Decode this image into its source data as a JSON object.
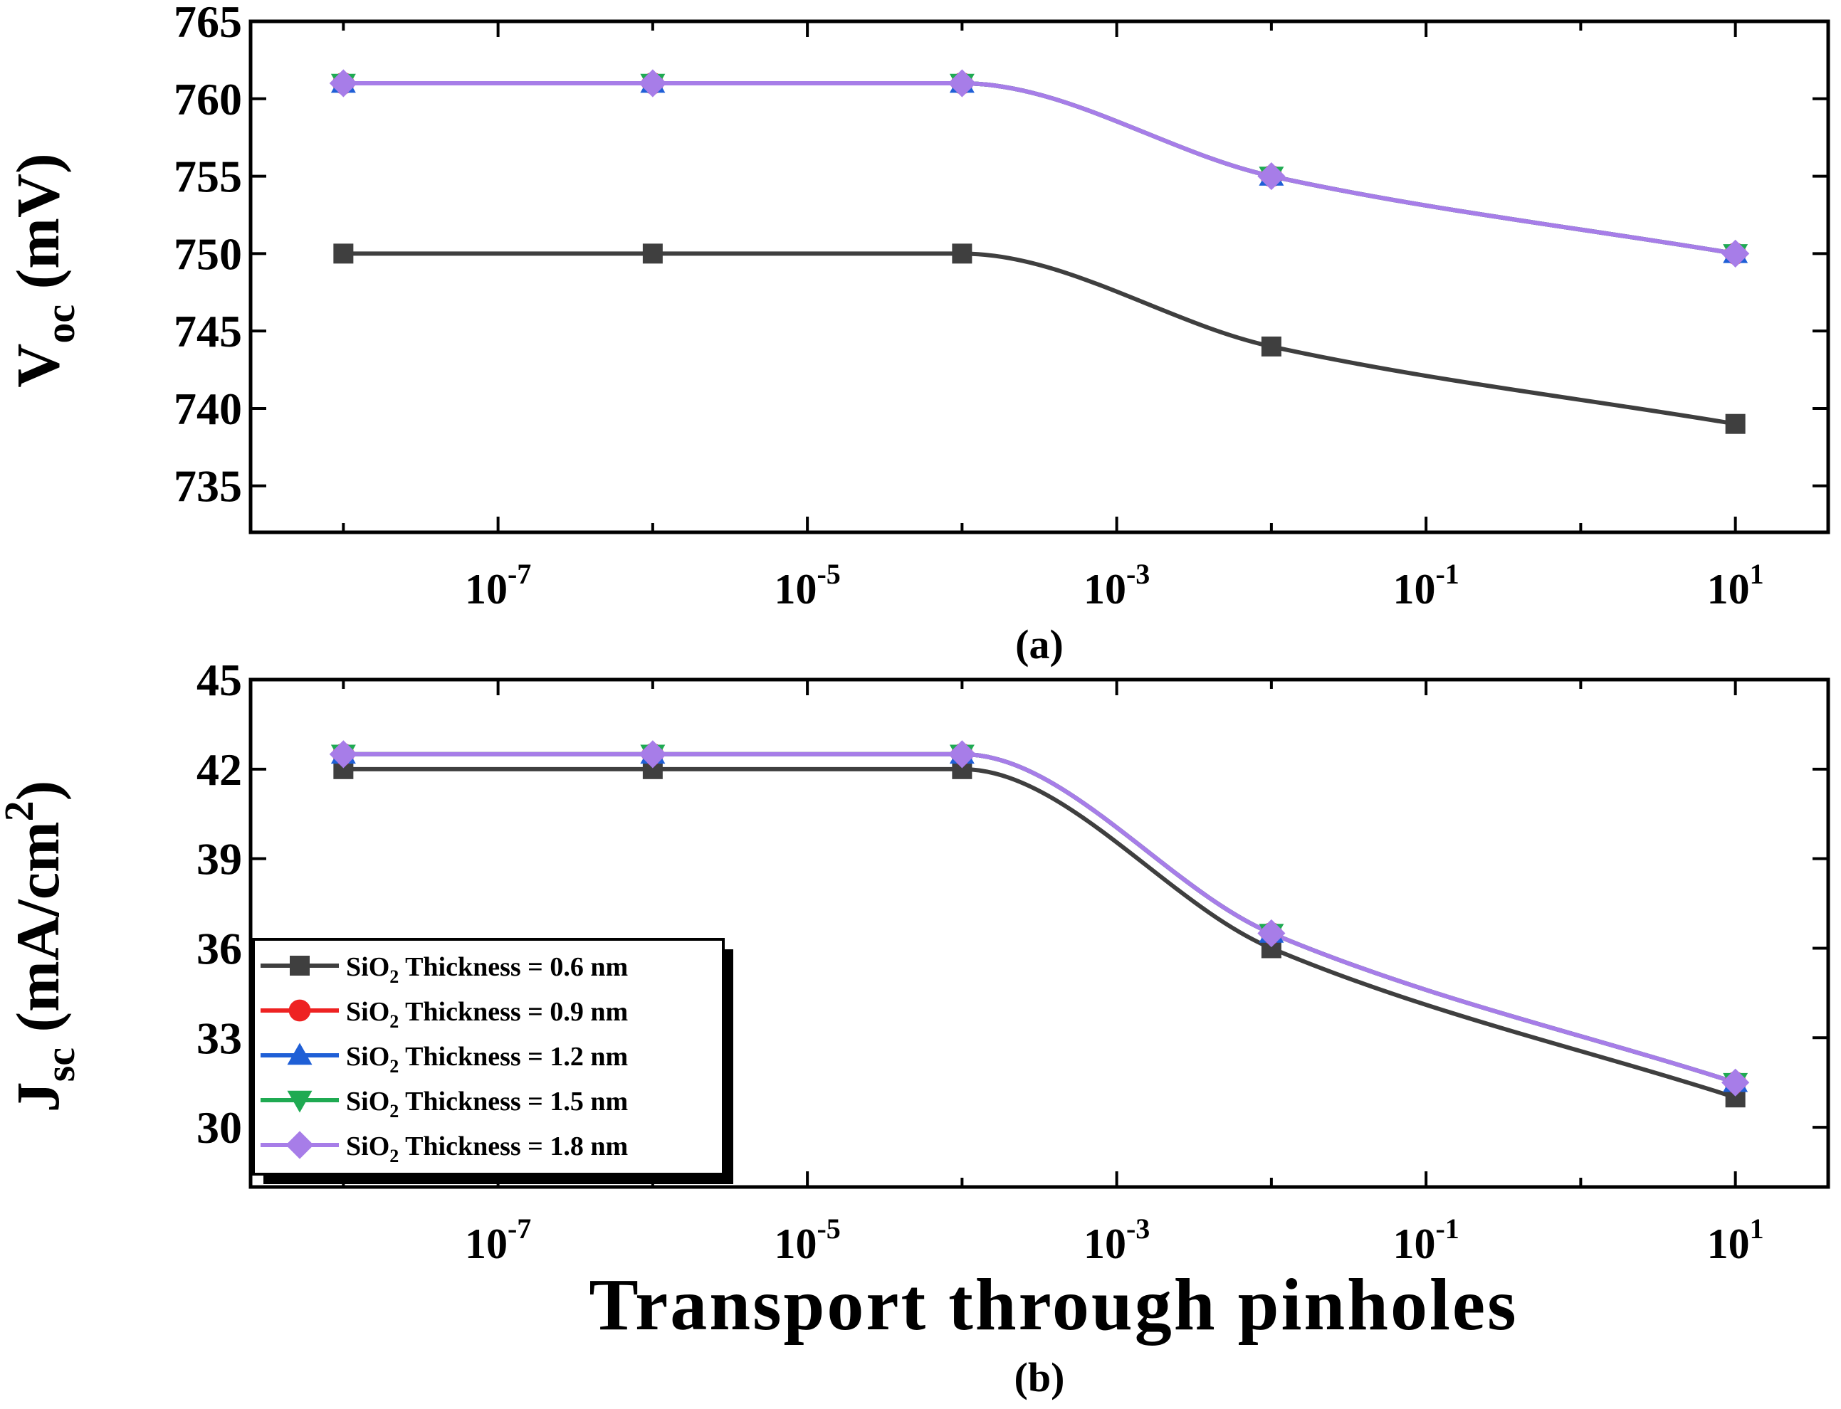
{
  "chart_data": [
    {
      "type": "line",
      "panel_label": "(a)",
      "ylabel_main": "V",
      "ylabel_sub": "oc",
      "ylabel_unit": " (mV)",
      "xscale": "log",
      "xlim_exp": [
        -8.6,
        1.6
      ],
      "ylim": [
        732,
        765
      ],
      "yticks": [
        735,
        740,
        745,
        750,
        755,
        760,
        765
      ],
      "xtick_exponents": [
        -7,
        -5,
        -3,
        -1,
        1
      ],
      "x": [
        1e-08,
        1e-06,
        0.0001,
        0.01,
        10
      ],
      "series": [
        {
          "name": "SiO2 Thickness = 0.6 nm",
          "marker": "square",
          "color": "#3f3f3f",
          "values": [
            750,
            750,
            750,
            744,
            739
          ]
        },
        {
          "name": "SiO2 Thickness = 0.9 nm",
          "marker": "circle",
          "color": "#ee2222",
          "values": [
            761,
            761,
            761,
            755,
            750
          ]
        },
        {
          "name": "SiO2 Thickness = 1.2 nm",
          "marker": "triangle-up",
          "color": "#1f5fd6",
          "values": [
            761,
            761,
            761,
            755,
            750
          ]
        },
        {
          "name": "SiO2 Thickness = 1.5 nm",
          "marker": "triangle-down",
          "color": "#1faa52",
          "values": [
            761,
            761,
            761,
            755,
            750
          ]
        },
        {
          "name": "SiO2 Thickness = 1.8 nm",
          "marker": "diamond",
          "color": "#a77de8",
          "values": [
            761,
            761,
            761,
            755,
            750
          ]
        }
      ]
    },
    {
      "type": "line",
      "panel_label": "(b)",
      "ylabel_main": "J",
      "ylabel_sub": "sc",
      "ylabel_unit": " (mA/cm",
      "ylabel_sup": "2",
      "ylabel_close": ")",
      "xlabel": "Transport through pinholes",
      "xscale": "log",
      "xlim_exp": [
        -8.6,
        1.6
      ],
      "ylim": [
        28,
        45
      ],
      "yticks": [
        30,
        33,
        36,
        39,
        42,
        45
      ],
      "xtick_exponents": [
        -7,
        -5,
        -3,
        -1,
        1
      ],
      "x": [
        1e-08,
        1e-06,
        0.0001,
        0.01,
        10
      ],
      "series": [
        {
          "name": "SiO2 Thickness = 0.6 nm",
          "marker": "square",
          "color": "#3f3f3f",
          "values": [
            42.0,
            42.0,
            42.0,
            36.0,
            31.0
          ]
        },
        {
          "name": "SiO2 Thickness = 0.9 nm",
          "marker": "circle",
          "color": "#ee2222",
          "values": [
            42.5,
            42.5,
            42.5,
            36.5,
            31.5
          ]
        },
        {
          "name": "SiO2 Thickness = 1.2 nm",
          "marker": "triangle-up",
          "color": "#1f5fd6",
          "values": [
            42.5,
            42.5,
            42.5,
            36.5,
            31.5
          ]
        },
        {
          "name": "SiO2 Thickness = 1.5 nm",
          "marker": "triangle-down",
          "color": "#1faa52",
          "values": [
            42.5,
            42.5,
            42.5,
            36.5,
            31.5
          ]
        },
        {
          "name": "SiO2 Thickness = 1.8 nm",
          "marker": "diamond",
          "color": "#a77de8",
          "values": [
            42.5,
            42.5,
            42.5,
            36.5,
            31.5
          ]
        }
      ]
    }
  ],
  "legend": {
    "placement": "bottom-left of panel (b)",
    "entries": [
      {
        "prefix": "SiO",
        "sub": "2",
        "suffix": " Thickness = 0.6 nm",
        "marker": "square",
        "color": "#3f3f3f"
      },
      {
        "prefix": "SiO",
        "sub": "2",
        "suffix": " Thickness = 0.9 nm",
        "marker": "circle",
        "color": "#ee2222"
      },
      {
        "prefix": "SiO",
        "sub": "2",
        "suffix": " Thickness = 1.2 nm",
        "marker": "triangle-up",
        "color": "#1f5fd6"
      },
      {
        "prefix": "SiO",
        "sub": "2",
        "suffix": " Thickness = 1.5 nm",
        "marker": "triangle-down",
        "color": "#1faa52"
      },
      {
        "prefix": "SiO",
        "sub": "2",
        "suffix": " Thickness = 1.8 nm",
        "marker": "diamond",
        "color": "#a77de8"
      }
    ]
  },
  "tick_base": "10"
}
